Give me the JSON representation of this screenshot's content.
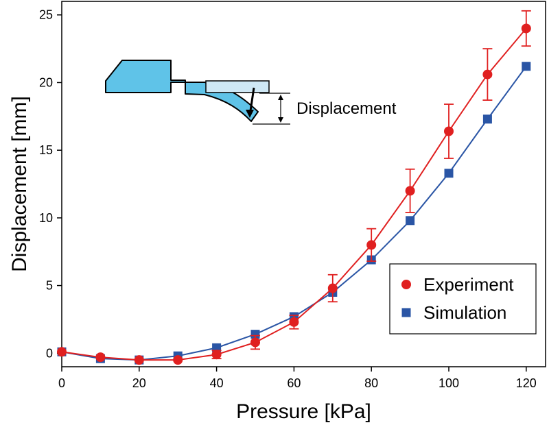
{
  "chart_data": {
    "type": "line",
    "xlabel": "Pressure [kPa]",
    "ylabel": "Displacement [mm]",
    "xlim": [
      0,
      125
    ],
    "ylim": [
      -1,
      26
    ],
    "x_ticks": [
      0,
      20,
      40,
      60,
      80,
      100,
      120
    ],
    "y_ticks": [
      0,
      5,
      10,
      15,
      20,
      25
    ],
    "grid": false,
    "legend_position": "bottom-right",
    "inset_label": "Displacement",
    "series": [
      {
        "name": "Experiment",
        "marker": "circle",
        "color": "#e02020",
        "x": [
          0,
          10,
          20,
          30,
          40,
          50,
          60,
          70,
          80,
          90,
          100,
          110,
          120
        ],
        "y": [
          0.1,
          -0.3,
          -0.5,
          -0.5,
          -0.1,
          0.8,
          2.3,
          4.8,
          8.0,
          12.0,
          16.4,
          20.6,
          24.0
        ],
        "error": [
          0,
          0,
          0,
          0,
          0.3,
          0.5,
          0.5,
          1.0,
          1.2,
          1.6,
          2.0,
          1.9,
          1.3
        ]
      },
      {
        "name": "Simulation",
        "marker": "square",
        "color": "#2a55a5",
        "x": [
          0,
          10,
          20,
          30,
          40,
          50,
          60,
          70,
          80,
          90,
          100,
          110,
          120
        ],
        "y": [
          0.1,
          -0.4,
          -0.5,
          -0.2,
          0.4,
          1.4,
          2.7,
          4.5,
          6.9,
          9.8,
          13.3,
          17.3,
          21.2
        ]
      }
    ]
  }
}
